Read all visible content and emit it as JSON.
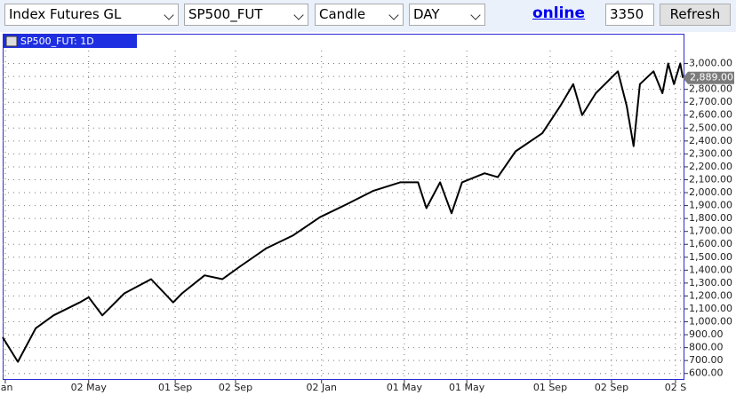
{
  "toolbar": {
    "group": "Index Futures GL",
    "symbol": "SP500_FUT",
    "style": "Candle",
    "period": "DAY",
    "status": "online",
    "count": "3350",
    "refresh": "Refresh"
  },
  "chart_data": {
    "type": "line",
    "title": "SP500_FUT: 1D",
    "color": "#000000",
    "grid": true,
    "x": [
      0,
      2.9,
      6.3,
      9.7,
      14.7,
      16.4,
      19,
      23.2,
      28.3,
      32.5,
      34.2,
      38.5,
      41.9,
      45.3,
      50.3,
      55.4,
      60.5,
      65.6,
      70.7,
      75.8,
      79.2,
      80.8,
      83.4,
      85.6,
      87.6,
      91.9,
      94.4,
      97.8,
      102.9,
      106.3,
      108.8,
      110.5,
      113.1,
      117.3,
      119,
      120.3,
      121.5,
      124.1,
      125.8,
      126.9,
      128,
      129.2,
      129.7
    ],
    "values": [
      880,
      690,
      950,
      1050,
      1150,
      1190,
      1050,
      1220,
      1330,
      1150,
      1220,
      1360,
      1330,
      1430,
      1570,
      1670,
      1810,
      1910,
      2015,
      2080,
      2080,
      1880,
      2080,
      1840,
      2080,
      2150,
      2120,
      2320,
      2460,
      2670,
      2840,
      2600,
      2770,
      2940,
      2670,
      2360,
      2840,
      2940,
      2770,
      3000,
      2840,
      3000,
      2889
    ],
    "last_label": {
      "value": 2889,
      "label": "2,889.00"
    },
    "xlim": [
      0,
      130
    ],
    "xticks": [
      {
        "value": 0.5,
        "label": "Jan"
      },
      {
        "value": 16.4,
        "label": "02 May"
      },
      {
        "value": 32.9,
        "label": "01 Sep"
      },
      {
        "value": 44.4,
        "label": "02 Sep"
      },
      {
        "value": 60.8,
        "label": "02 Jan"
      },
      {
        "value": 76.6,
        "label": "01 May"
      },
      {
        "value": 88.5,
        "label": "01 May"
      },
      {
        "value": 104.4,
        "label": "01 Sep"
      },
      {
        "value": 116.1,
        "label": "02 Sep"
      },
      {
        "value": 128.3,
        "label": "02 S"
      }
    ],
    "ylim": [
      550,
      3100
    ],
    "yticks": [
      {
        "value": 600,
        "label": "600.00"
      },
      {
        "value": 700,
        "label": "700.00"
      },
      {
        "value": 800,
        "label": "800.00"
      },
      {
        "value": 900,
        "label": "900.00"
      },
      {
        "value": 1000,
        "label": "1,000.00"
      },
      {
        "value": 1100,
        "label": "1,100.00"
      },
      {
        "value": 1200,
        "label": "1,200.00"
      },
      {
        "value": 1300,
        "label": "1,300.00"
      },
      {
        "value": 1400,
        "label": "1,400.00"
      },
      {
        "value": 1500,
        "label": "1,500.00"
      },
      {
        "value": 1600,
        "label": "1,600.00"
      },
      {
        "value": 1700,
        "label": "1,700.00"
      },
      {
        "value": 1800,
        "label": "1,800.00"
      },
      {
        "value": 1900,
        "label": "1,900.00"
      },
      {
        "value": 2000,
        "label": "2,000.00"
      },
      {
        "value": 2100,
        "label": "2,100.00"
      },
      {
        "value": 2200,
        "label": "2,200.00"
      },
      {
        "value": 2300,
        "label": "2,300.00"
      },
      {
        "value": 2400,
        "label": "2,400.00"
      },
      {
        "value": 2500,
        "label": "2,500.00"
      },
      {
        "value": 2600,
        "label": "2,600.00"
      },
      {
        "value": 2700,
        "label": "2,700.00"
      },
      {
        "value": 2800,
        "label": "2,800.00"
      },
      {
        "value": 2900,
        "label": "2,900.00"
      },
      {
        "value": 3000,
        "label": "3,000.00"
      }
    ]
  }
}
